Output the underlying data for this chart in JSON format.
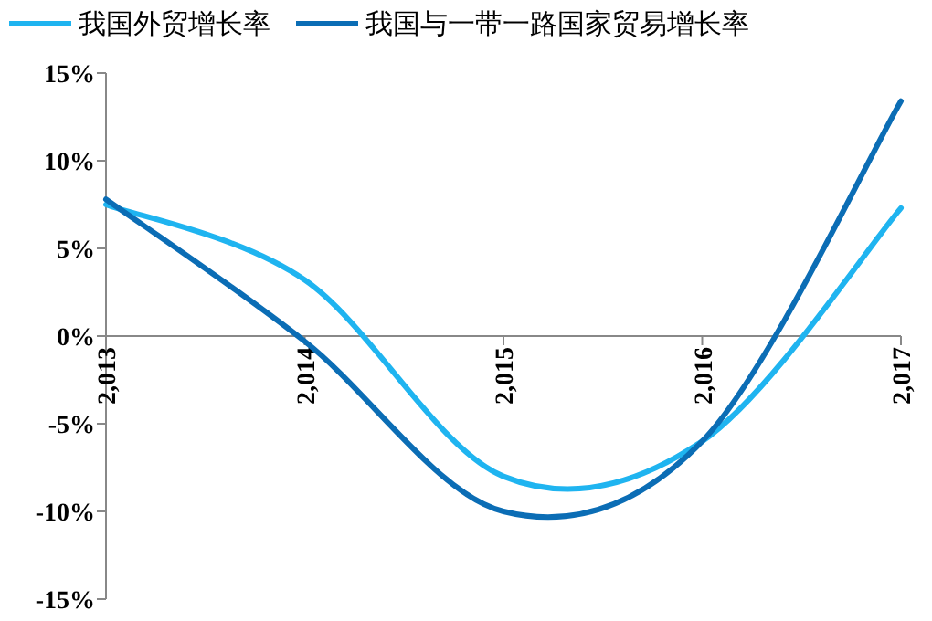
{
  "chart_data": {
    "type": "line",
    "x": [
      2013,
      2014,
      2015,
      2016,
      2017
    ],
    "xlim": [
      2013,
      2017
    ],
    "xticks": [
      {
        "value": 2013,
        "label": "2,013"
      },
      {
        "value": 2014,
        "label": "2,014"
      },
      {
        "value": 2015,
        "label": "2,015"
      },
      {
        "value": 2016,
        "label": "2,016"
      },
      {
        "value": 2017,
        "label": "2,017"
      }
    ],
    "ylim": [
      -15,
      15
    ],
    "yticks": [
      {
        "value": -15,
        "label": "-15%"
      },
      {
        "value": -10,
        "label": "-10%"
      },
      {
        "value": -5,
        "label": "-5%"
      },
      {
        "value": 0,
        "label": "0%"
      },
      {
        "value": 5,
        "label": "5%"
      },
      {
        "value": 10,
        "label": "10%"
      },
      {
        "value": 15,
        "label": "15%"
      }
    ],
    "series": [
      {
        "name": "我国外贸增长率",
        "color": "#1fb4f0",
        "values": [
          7.5,
          3.2,
          -8,
          -6,
          7.3
        ]
      },
      {
        "name": "我国与一带一路国家贸易增长率",
        "color": "#0b6db5",
        "values": [
          7.8,
          -0.3,
          -10,
          -6,
          13.4
        ]
      }
    ],
    "legend": "top",
    "grid": false,
    "marker": "none",
    "line_style": "solid"
  }
}
